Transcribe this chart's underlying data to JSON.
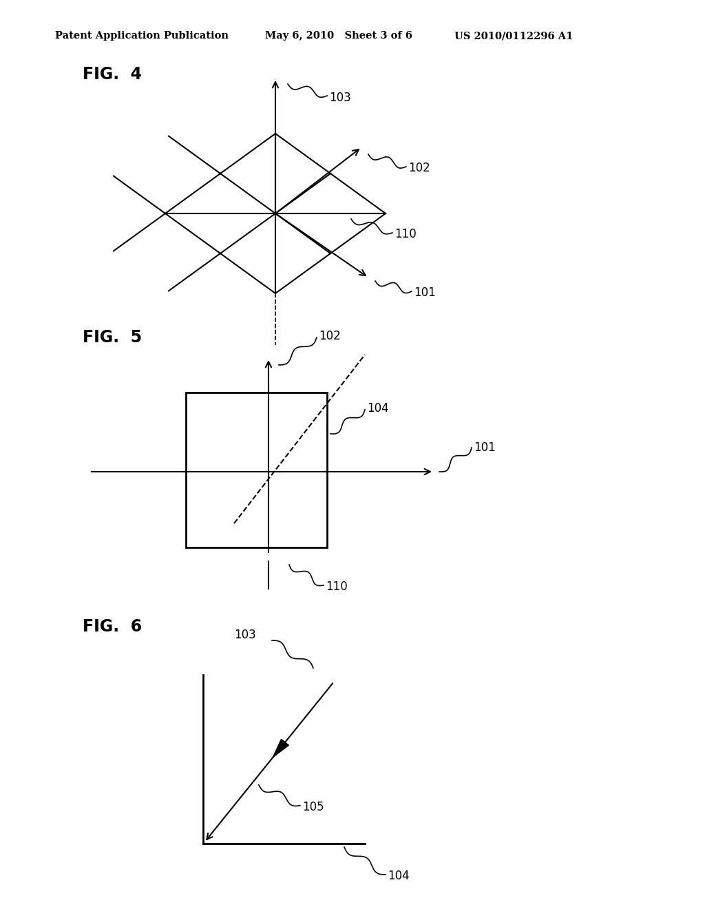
{
  "bg_color": "#ffffff",
  "header_left": "Patent Application Publication",
  "header_mid": "May 6, 2010   Sheet 3 of 6",
  "header_right": "US 2010/0112296 A1",
  "fig4_label": "FIG.  4",
  "fig5_label": "FIG.  5",
  "fig6_label": "FIG.  6"
}
